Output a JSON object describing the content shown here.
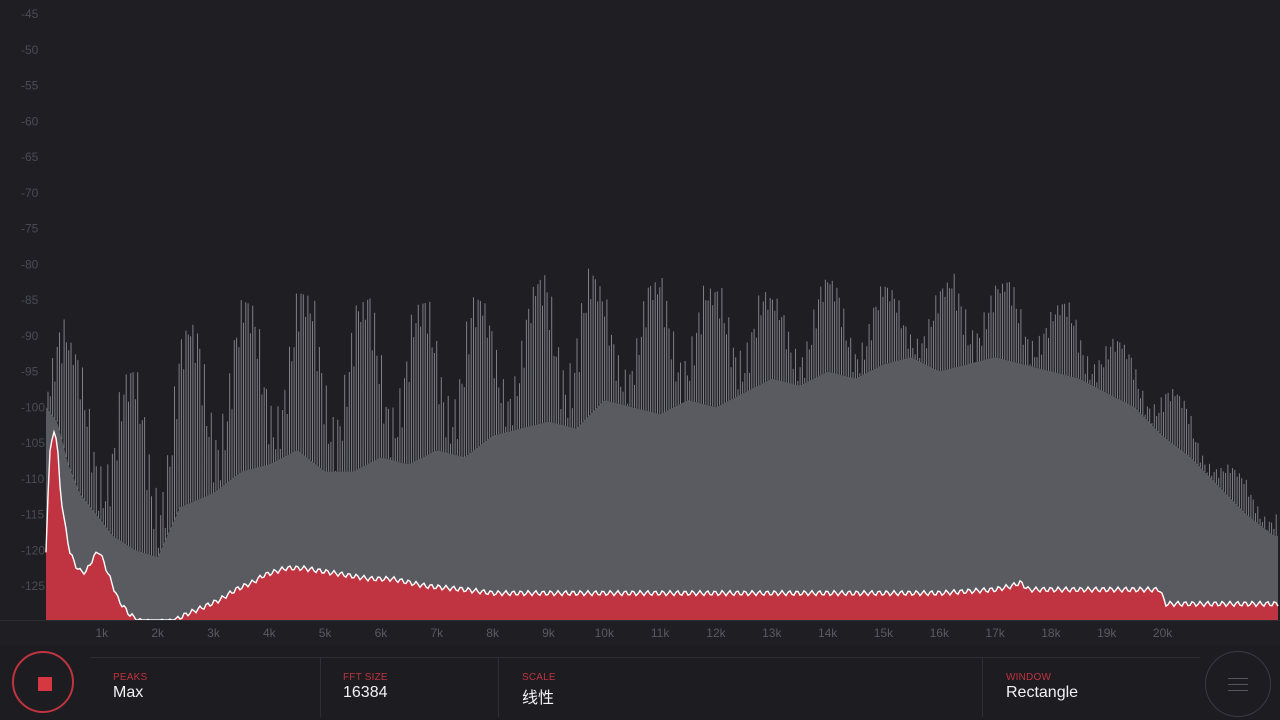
{
  "colors": {
    "background": "#1e1e23",
    "accent": "#d63842",
    "peak_fill": "#5a5a61",
    "peak_line": "#8a8a91",
    "current_fill": "#bf3440",
    "current_line": "#ffffff"
  },
  "chart_data": {
    "type": "area",
    "y_tick_labels": [
      "-45",
      "-50",
      "-55",
      "-60",
      "-65",
      "-70",
      "-75",
      "-80",
      "-85",
      "-90",
      "-95",
      "-100",
      "-105",
      "-110",
      "-115",
      "-120",
      "-125"
    ],
    "ylim": [
      -130,
      -44
    ],
    "x_tick_labels": [
      "1k",
      "2k",
      "3k",
      "4k",
      "5k",
      "6k",
      "7k",
      "8k",
      "9k",
      "10k",
      "11k",
      "12k",
      "13k",
      "14k",
      "15k",
      "16k",
      "17k",
      "18k",
      "19k",
      "20k"
    ],
    "xlim_hz": [
      0,
      22000
    ],
    "series": [
      {
        "name": "",
        "role": "peak-hold",
        "x_hz": [
          0,
          200,
          400,
          600,
          900,
          1200,
          1600,
          2000,
          2400,
          3000,
          3500,
          4000,
          4500,
          5000,
          5500,
          6000,
          6500,
          7000,
          7500,
          8000,
          8500,
          9000,
          9500,
          10000,
          10500,
          11000,
          11500,
          12000,
          12500,
          13000,
          13500,
          14000,
          14500,
          15000,
          15500,
          16000,
          16500,
          17000,
          17500,
          18000,
          18500,
          19000,
          19500,
          20000,
          20500,
          21000,
          21500,
          22000
        ],
        "max_db": [
          -89,
          -84,
          -90,
          -94,
          -93,
          -96,
          -95,
          -96,
          -90,
          -86,
          -85,
          -87,
          -84,
          -85,
          -86,
          -84,
          -86,
          -85,
          -84,
          -86,
          -85,
          -81,
          -78,
          -84,
          -85,
          -82,
          -81,
          -84,
          -80,
          -85,
          -84,
          -82,
          -84,
          -83,
          -85,
          -84,
          -79,
          -83,
          -82,
          -86,
          -85,
          -90,
          -92,
          -96,
          -100,
          -107,
          -110,
          -113
        ],
        "min_db": [
          -100,
          -102,
          -108,
          -112,
          -115,
          -118,
          -120,
          -121,
          -114,
          -112,
          -109,
          -108,
          -106,
          -109,
          -109,
          -107,
          -108,
          -106,
          -107,
          -104,
          -103,
          -102,
          -103,
          -99,
          -100,
          -101,
          -99,
          -100,
          -98,
          -96,
          -97,
          -95,
          -96,
          -94,
          -93,
          -95,
          -94,
          -93,
          -94,
          -95,
          -96,
          -98,
          -100,
          -104,
          -107,
          -111,
          -115,
          -118
        ]
      },
      {
        "name": "",
        "role": "current",
        "x_hz": [
          0,
          60,
          140,
          200,
          260,
          330,
          420,
          520,
          620,
          720,
          850,
          950,
          1050,
          1150,
          1300,
          1500,
          1700,
          1850,
          2000,
          2100,
          2250,
          2500,
          2800,
          3100,
          3400,
          3700,
          3900,
          4100,
          4300,
          4600,
          5000,
          5400,
          5800,
          6200,
          6800,
          7500,
          8000,
          9000,
          10000,
          11000,
          12000,
          13000,
          14000,
          15000,
          16000,
          17000,
          17300,
          17450,
          17600,
          18000,
          19000,
          19500,
          19950,
          20050,
          21000,
          22000
        ],
        "db": [
          -120,
          -107,
          -103,
          -105,
          -112,
          -116,
          -120,
          -122,
          -123,
          -123,
          -121,
          -120,
          -122,
          -124,
          -127,
          -129,
          -130,
          -130,
          -130,
          -130,
          -130,
          -129,
          -128,
          -127,
          -125.5,
          -124.5,
          -123.5,
          -123,
          -122.5,
          -122.5,
          -123,
          -123.5,
          -124,
          -124,
          -125,
          -125.5,
          -126,
          -126,
          -126,
          -126,
          -126,
          -126,
          -126,
          -126,
          -126,
          -125.5,
          -125,
          -124.5,
          -125.5,
          -125.5,
          -125.5,
          -125.5,
          -125.5,
          -127.5,
          -127.5,
          -127.5
        ]
      }
    ]
  },
  "controls": {
    "stop_button_label": "",
    "settings": [
      {
        "label": "PEAKS",
        "value": "Max"
      },
      {
        "label": "FFT SIZE",
        "value": "16384"
      },
      {
        "label": "SCALE",
        "value": "线性"
      },
      {
        "label": "WINDOW",
        "value": "Rectangle"
      }
    ]
  },
  "icons": {
    "stop": "stop-square-icon",
    "menu": "hamburger-menu-icon"
  }
}
